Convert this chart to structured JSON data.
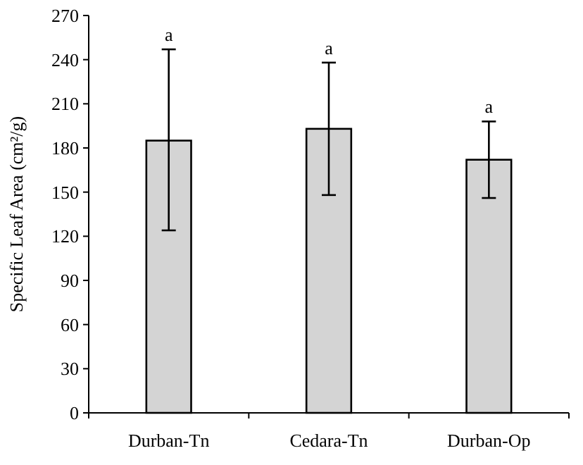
{
  "chart_data": {
    "type": "bar",
    "ylabel": "Specific Leaf Area (cm²/g)",
    "categories": [
      "Durban-Tn",
      "Cedara-Tn",
      "Durban-Op"
    ],
    "values": [
      185,
      193,
      172
    ],
    "color": "#d4d4d4",
    "errors": [
      [
        124,
        247
      ],
      [
        148,
        238
      ],
      [
        146,
        198
      ]
    ],
    "ylim": [
      0,
      270
    ],
    "yticks": [
      0,
      30,
      60,
      90,
      120,
      150,
      180,
      210,
      240,
      270
    ],
    "grid": false,
    "annotations": [
      {
        "text": "a",
        "x": "Durban-Tn",
        "y": 247
      },
      {
        "text": "a",
        "x": "Cedara-Tn",
        "y": 238
      },
      {
        "text": "a",
        "x": "Durban-Op",
        "y": 198
      }
    ]
  }
}
